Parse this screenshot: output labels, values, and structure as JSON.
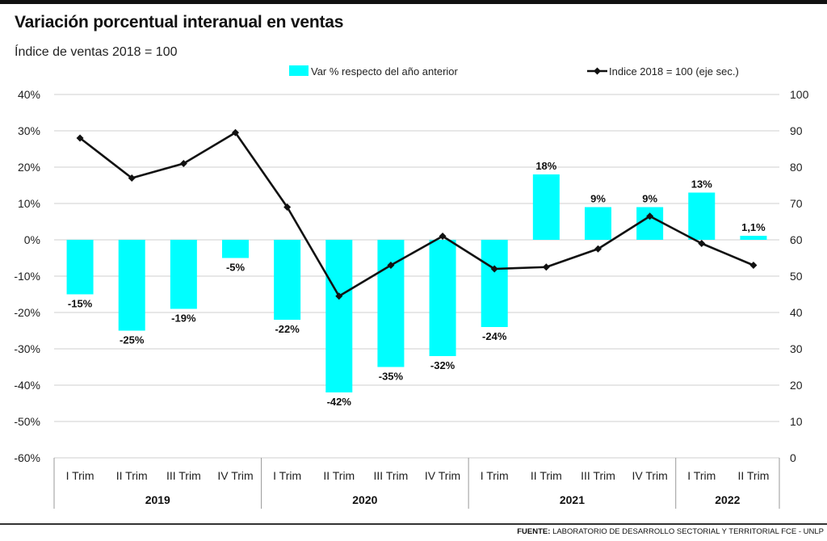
{
  "title": "Variación porcentual interanual en ventas",
  "subtitle": "Índice de ventas 2018 = 100",
  "source": {
    "prefix": "FUENTE:",
    "text": "LABORATORIO DE DESARROLLO SECTORIAL Y TERRITORIAL FCE - UNLP"
  },
  "colors": {
    "bar": "#00FFFF",
    "line": "#111111",
    "grid": "#cfcfcf"
  },
  "chart_data": {
    "type": "bar",
    "combo_line": true,
    "categories": [
      "I Trim",
      "II Trim",
      "III Trim",
      "IV Trim",
      "I Trim",
      "II Trim",
      "III Trim",
      "IV Trim",
      "I Trim",
      "II Trim",
      "III Trim",
      "IV Trim",
      "I Trim",
      "II Trim"
    ],
    "groups": [
      {
        "label": "2019",
        "count": 4
      },
      {
        "label": "2020",
        "count": 4
      },
      {
        "label": "2021",
        "count": 4
      },
      {
        "label": "2022",
        "count": 2
      }
    ],
    "series": [
      {
        "name": "Var % respecto del año anterior",
        "type": "bar",
        "axis": "left",
        "values": [
          -15,
          -25,
          -19,
          -5,
          -22,
          -42,
          -35,
          -32,
          -24,
          18,
          9,
          9,
          13,
          1.1
        ],
        "labels": [
          "-15%",
          "-25%",
          "-19%",
          "-5%",
          "-22%",
          "-42%",
          "-35%",
          "-32%",
          "-24%",
          "18%",
          "9%",
          "9%",
          "13%",
          "1,1%"
        ]
      },
      {
        "name": "Indice 2018 = 100 (eje sec.)",
        "type": "line",
        "axis": "right",
        "values": [
          88,
          77,
          81,
          89.5,
          69,
          44.5,
          53,
          61,
          52,
          52.5,
          57.5,
          66.5,
          59,
          53
        ]
      }
    ],
    "ylim": [
      -60,
      40
    ],
    "y_ticks": [
      "40%",
      "30%",
      "20%",
      "10%",
      "0%",
      "-10%",
      "-20%",
      "-30%",
      "-40%",
      "-50%",
      "-60%"
    ],
    "y2lim": [
      0,
      100
    ],
    "y2_ticks": [
      "100",
      "90",
      "80",
      "70",
      "60",
      "50",
      "40",
      "30",
      "20",
      "10",
      "0"
    ],
    "grid": true,
    "legend": "top"
  }
}
